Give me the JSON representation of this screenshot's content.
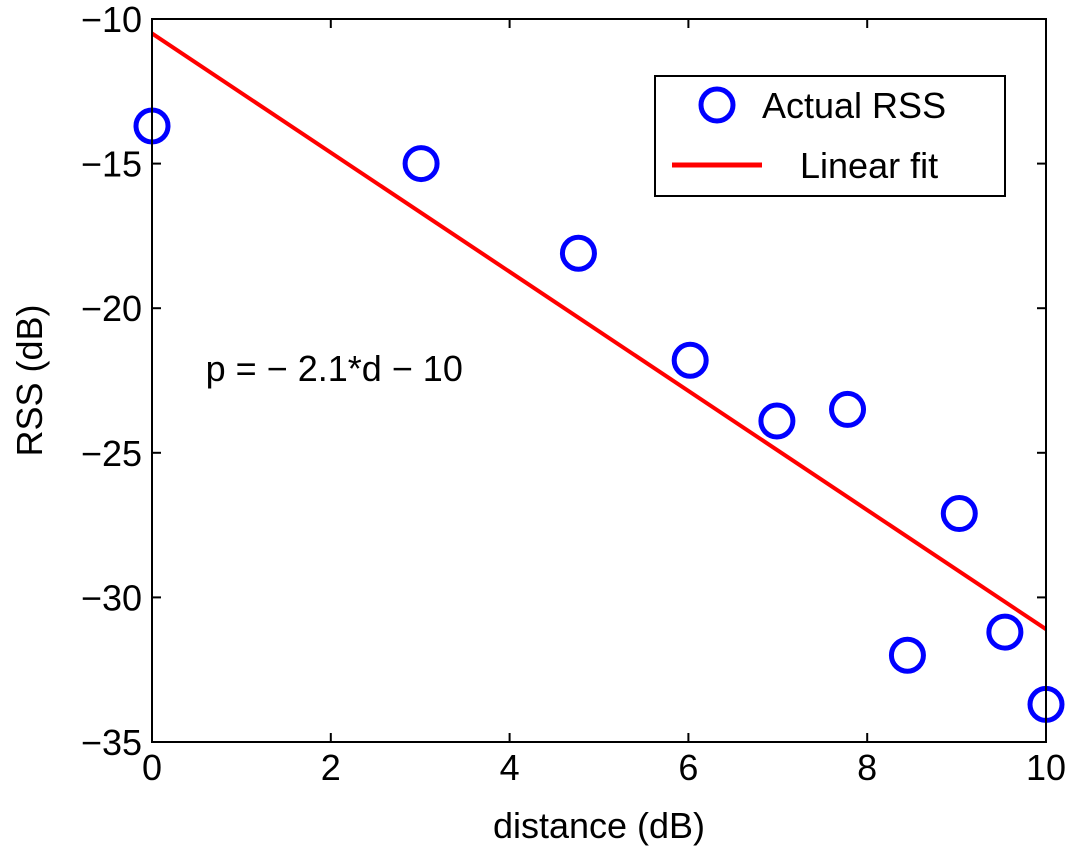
{
  "chart_data": {
    "type": "scatter",
    "xlabel": "distance (dB)",
    "ylabel": "RSS (dB)",
    "xlim": [
      0,
      10
    ],
    "ylim": [
      -35,
      -10
    ],
    "x_ticks": [
      0,
      2,
      4,
      6,
      8,
      10
    ],
    "y_ticks": [
      -35,
      -30,
      -25,
      -20,
      -15,
      -10
    ],
    "x_tick_labels": [
      "0",
      "2",
      "4",
      "6",
      "8",
      "10"
    ],
    "y_tick_labels": [
      "−35",
      "−30",
      "−25",
      "−20",
      "−15",
      "−10"
    ],
    "grid": false,
    "legend_position": "top-right",
    "series": [
      {
        "name": "Actual RSS",
        "type": "scatter",
        "marker": "circle-open",
        "color": "#0000ff",
        "x": [
          0,
          3.01,
          4.77,
          6.02,
          6.99,
          7.78,
          8.45,
          9.03,
          9.54,
          10
        ],
        "y": [
          -13.7,
          -15.0,
          -18.1,
          -21.8,
          -23.9,
          -23.5,
          -32.0,
          -27.1,
          -31.2,
          -33.7
        ]
      },
      {
        "name": "Linear fit",
        "type": "line",
        "color": "#ff0000",
        "x": [
          0,
          10
        ],
        "y": [
          -10.5,
          -31.1
        ]
      }
    ],
    "annotations": [
      {
        "text": "p = − 2.1*d − 10",
        "x": 0.6,
        "y": -22.1
      }
    ]
  }
}
